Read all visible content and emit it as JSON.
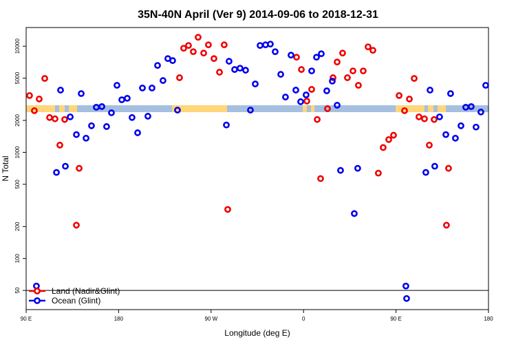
{
  "chart_data": {
    "type": "scatter",
    "title": "35N-40N April (Ver 9)   2014-09-06 to 2018-12-31",
    "xlabel": "Longitude (deg E)",
    "ylabel": "N Total",
    "xlim": [
      90,
      540
    ],
    "xticks": [
      {
        "value": 90,
        "label": "90 E"
      },
      180,
      {
        "value": 270,
        "label": "90 W"
      },
      {
        "value": 360,
        "label": "0"
      },
      {
        "value": 450,
        "label": "90 E"
      },
      {
        "value": 540,
        "label": "180"
      }
    ],
    "ylim": [
      33,
      15000
    ],
    "yticks": [
      50,
      100,
      200,
      500,
      1000,
      2000,
      5000,
      10000
    ],
    "log_y": true,
    "hlines": [
      50
    ],
    "legend": "bottom-left",
    "series": [
      {
        "name": "Land (Nadir&Glint)",
        "color": "#ee0000",
        "x": [
          93.3,
          98.0,
          102.7,
          108.1,
          112.8,
          118.1,
          122.8,
          127.5,
          138.9,
          141.6,
          239.3,
          243.3,
          248.0,
          252.7,
          257.4,
          262.8,
          267.4,
          272.8,
          278.2,
          282.8,
          286.2,
          353.2,
          357.9,
          363.2,
          367.9,
          373.3,
          376.6,
          383.3,
          388.7,
          392.7,
          398.0,
          402.7,
          408.1,
          413.4,
          418.1,
          422.8,
          427.5,
          432.8,
          437.5,
          442.9,
          447.6,
          453.0,
          458.3,
          463.0,
          467.7,
          472.3,
          477.7,
          482.4,
          487.1,
          499.1,
          501.1
        ],
        "values": [
          3430,
          2470,
          3180,
          4970,
          2130,
          2070,
          1170,
          2040,
          206,
          707,
          5050,
          9570,
          10160,
          8880,
          12140,
          8620,
          10300,
          7650,
          5690,
          10300,
          290,
          7880,
          6030,
          3040,
          3920,
          2040,
          566,
          2580,
          5050,
          7100,
          8620,
          5050,
          5850,
          4280,
          5850,
          9860,
          9150,
          637,
          1110,
          1320,
          1450,
          3430,
          2470,
          3180,
          4970,
          2160,
          2070,
          1170,
          2040,
          206,
          707
        ]
      },
      {
        "name": "Ocean (Glint)",
        "color": "#0000ee",
        "x": [
          100.0,
          119.5,
          123.5,
          128.2,
          132.9,
          138.9,
          143.6,
          148.3,
          153.6,
          158.3,
          163.7,
          168.3,
          173.0,
          178.4,
          183.1,
          188.4,
          193.1,
          198.5,
          203.2,
          208.5,
          212.5,
          217.9,
          223.2,
          227.9,
          232.6,
          237.3,
          284.9,
          287.5,
          292.9,
          298.2,
          303.6,
          308.3,
          313.0,
          317.7,
          323.0,
          327.7,
          332.4,
          337.8,
          342.4,
          347.8,
          352.5,
          357.2,
          362.5,
          367.9,
          372.6,
          377.3,
          382.6,
          388.0,
          392.7,
          396.0,
          409.4,
          412.7,
          459.6,
          460.3,
          479.0,
          483.1,
          487.7,
          492.4,
          498.5,
          503.1,
          507.8,
          513.2,
          517.9,
          523.2,
          527.9,
          532.6,
          537.3
        ],
        "values": [
          55,
          647,
          3860,
          740,
          2160,
          1470,
          3580,
          1360,
          1780,
          2660,
          2700,
          1750,
          2360,
          4280,
          3130,
          3230,
          2130,
          1530,
          4040,
          2190,
          4040,
          6590,
          4750,
          7650,
          7320,
          2500,
          1810,
          7210,
          6030,
          6210,
          5940,
          2500,
          4410,
          10160,
          10300,
          10470,
          8880,
          5430,
          3320,
          8240,
          3860,
          3000,
          3480,
          5850,
          7880,
          8490,
          3800,
          4690,
          2780,
          676,
          265,
          707,
          55,
          42,
          647,
          3860,
          740,
          2160,
          1470,
          3580,
          1360,
          1780,
          2660,
          2700,
          1730,
          2400,
          4280
        ]
      }
    ]
  }
}
